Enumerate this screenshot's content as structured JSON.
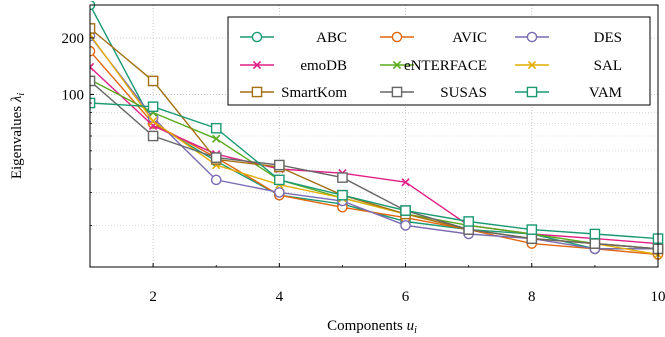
{
  "chart_data": {
    "type": "line",
    "title": "",
    "xlabel": "Components ",
    "xlabel_var": "u",
    "xlabel_sub": "i",
    "ylabel": "Eigenvalues ",
    "ylabel_var": "λ",
    "ylabel_sub": "i",
    "x": [
      1,
      2,
      3,
      4,
      5,
      6,
      7,
      8,
      9,
      10
    ],
    "xlim": [
      1,
      10
    ],
    "ylim": [
      12,
      300
    ],
    "y_scale": "log",
    "x_ticks": [
      2,
      4,
      6,
      8,
      10
    ],
    "y_ticks": [
      100,
      200
    ],
    "grid": "dotted",
    "legend_position": "top-right",
    "series": [
      {
        "name": "ABC",
        "color": "#1a9a73",
        "marker": "circle",
        "values": [
          300,
          70,
          44,
          29,
          26,
          21,
          19,
          18,
          15,
          15
        ]
      },
      {
        "name": "AVIC",
        "color": "#e0660f",
        "marker": "circle",
        "values": [
          170,
          70,
          46,
          29,
          25,
          22,
          19,
          16,
          15,
          14
        ]
      },
      {
        "name": "DES",
        "color": "#7a6bb3",
        "marker": "circle",
        "values": [
          205,
          75,
          35,
          30,
          27,
          20,
          18,
          17,
          15,
          15
        ]
      },
      {
        "name": "emoDB",
        "color": "#e01f86",
        "marker": "cross",
        "values": [
          140,
          68,
          48,
          40,
          38,
          34,
          20,
          18,
          17,
          16
        ]
      },
      {
        "name": "eNTERFACE",
        "color": "#5aab1f",
        "marker": "cross",
        "values": [
          120,
          80,
          58,
          35,
          28,
          23,
          20,
          18,
          16,
          15
        ]
      },
      {
        "name": "SAL",
        "color": "#e3ad00",
        "marker": "cross",
        "values": [
          208,
          72,
          42,
          33,
          28,
          23,
          19,
          17,
          16,
          14
        ]
      },
      {
        "name": "SmartKom",
        "color": "#a36f12",
        "marker": "square",
        "values": [
          225,
          118,
          45,
          41,
          29,
          23,
          19,
          17,
          16,
          15
        ]
      },
      {
        "name": "SUSAS",
        "color": "#666666",
        "marker": "square",
        "values": [
          118,
          60,
          46,
          42,
          36,
          24,
          19,
          17,
          16,
          15
        ]
      },
      {
        "name": "VAM",
        "color": "#1a9a73",
        "marker": "square",
        "values": [
          90,
          86,
          66,
          35,
          29,
          24,
          21,
          19,
          18,
          17
        ]
      }
    ]
  }
}
